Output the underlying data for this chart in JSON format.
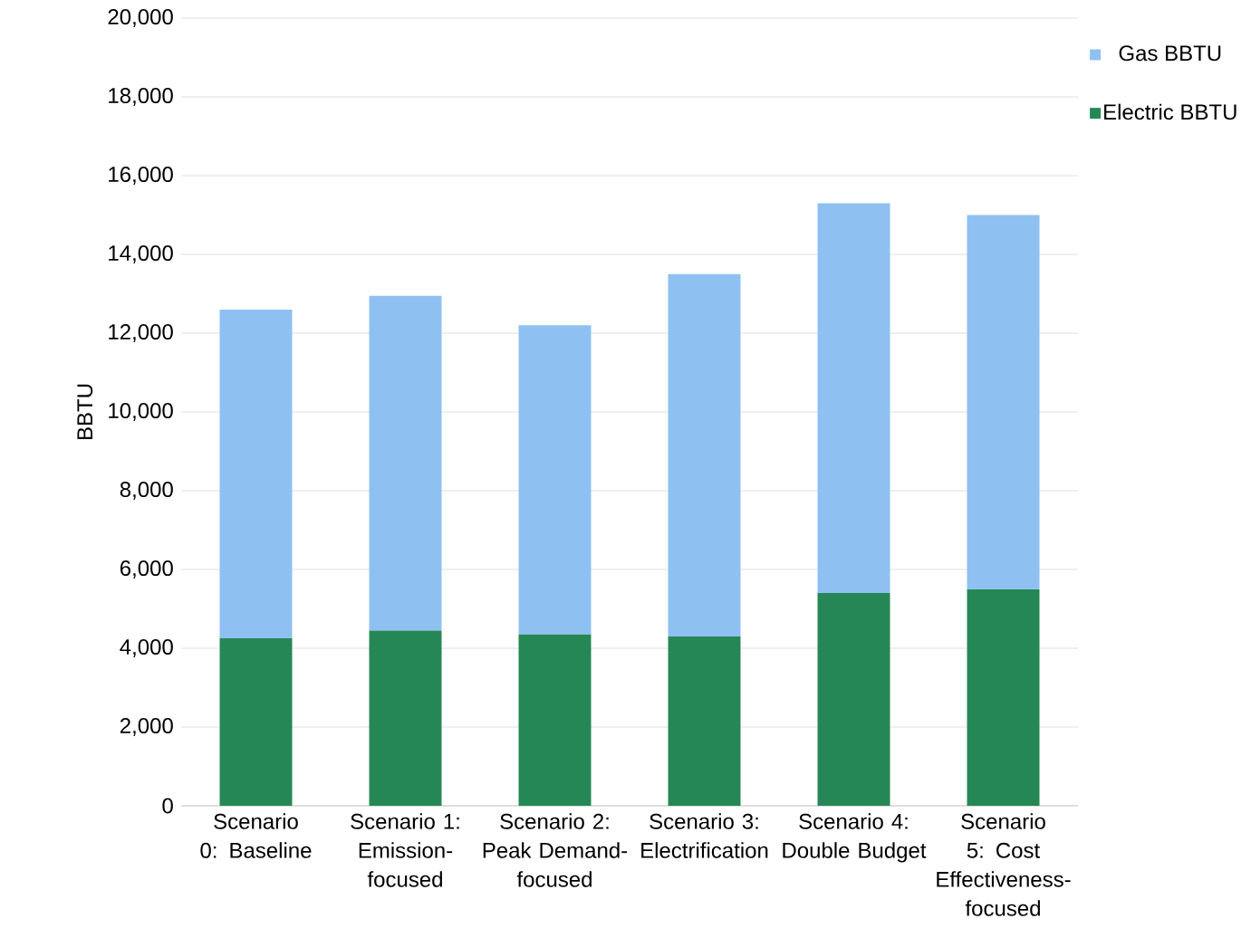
{
  "chart_data": {
    "type": "bar",
    "stacked": true,
    "ylabel": "BBTU",
    "categories": [
      "Scenario 0: Baseline",
      "Scenario 1: Emission-focused",
      "Scenario 2: Peak Demand-focused",
      "Scenario 3: Electrification",
      "Scenario 4: Double Budget",
      "Scenario 5: Cost Effectiveness-focused"
    ],
    "series": [
      {
        "name": "Electric BBTU",
        "color": "#268756",
        "values": [
          4250,
          4450,
          4350,
          4300,
          5400,
          5500
        ]
      },
      {
        "name": "Gas BBTU",
        "color": "#8ec1f2",
        "values": [
          8350,
          8500,
          7850,
          9200,
          9900,
          9500
        ]
      }
    ],
    "ylim": [
      0,
      20000
    ],
    "yticks": [
      {
        "value": 0,
        "label": "0"
      },
      {
        "value": 2000,
        "label": "2,000"
      },
      {
        "value": 4000,
        "label": "4,000"
      },
      {
        "value": 6000,
        "label": "6,000"
      },
      {
        "value": 8000,
        "label": "8,000"
      },
      {
        "value": 10000,
        "label": "10,000"
      },
      {
        "value": 12000,
        "label": "12,000"
      },
      {
        "value": 14000,
        "label": "14,000"
      },
      {
        "value": 16000,
        "label": "16,000"
      },
      {
        "value": 18000,
        "label": "18,000"
      },
      {
        "value": 20000,
        "label": "20,000"
      }
    ],
    "grid": "y",
    "legend": "top right"
  }
}
